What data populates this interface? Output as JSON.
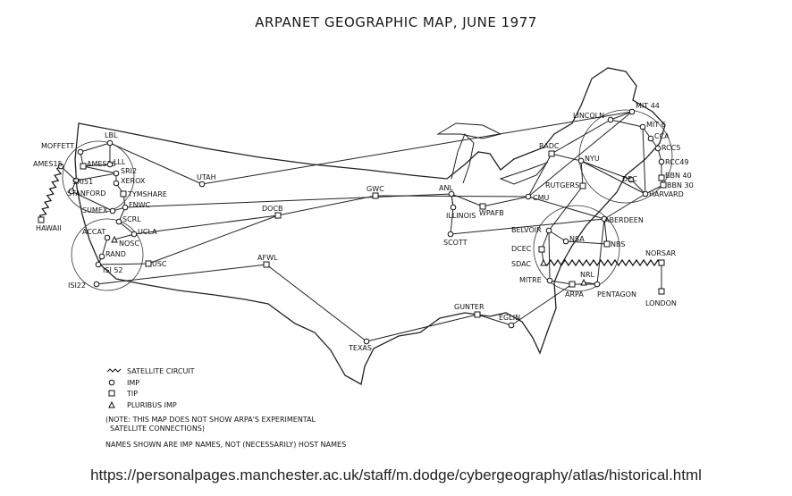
{
  "title": "ARPANET GEOGRAPHIC MAP, JUNE 1977",
  "caption": "https://personalpages.manchester.ac.uk/staff/m.dodge/cybergeography/atlas/historical.html",
  "nodes": [
    {
      "id": "moffett",
      "label": "MOFFETT",
      "type": "imp"
    },
    {
      "id": "lbl",
      "label": "LBL",
      "type": "imp"
    },
    {
      "id": "ames15",
      "label": "AMES15",
      "type": "imp"
    },
    {
      "id": "ames16",
      "label": "AMES16",
      "type": "tip"
    },
    {
      "id": "lll",
      "label": "LLL",
      "type": "imp"
    },
    {
      "id": "sri2",
      "label": "SRI2",
      "type": "imp"
    },
    {
      "id": "sri51",
      "label": "SRI51",
      "type": "imp"
    },
    {
      "id": "xerox",
      "label": "XEROX",
      "type": "imp"
    },
    {
      "id": "stanford",
      "label": "STANFORD",
      "type": "imp"
    },
    {
      "id": "tymshare",
      "label": "TYMSHARE",
      "type": "tip"
    },
    {
      "id": "sumex",
      "label": "SUMEX",
      "type": "imp"
    },
    {
      "id": "fnwc",
      "label": "FNWC",
      "type": "imp"
    },
    {
      "id": "hawaii",
      "label": "HAWAII",
      "type": "tip"
    },
    {
      "id": "accat",
      "label": "ACCAT",
      "type": "imp"
    },
    {
      "id": "scrl",
      "label": "SCRL",
      "type": "imp"
    },
    {
      "id": "ucla",
      "label": "UCLA",
      "type": "imp"
    },
    {
      "id": "nosc",
      "label": "NOSC",
      "type": "pluribus"
    },
    {
      "id": "rand",
      "label": "RAND",
      "type": "imp"
    },
    {
      "id": "isi52",
      "label": "ISI 52",
      "type": "imp"
    },
    {
      "id": "usc",
      "label": "USC",
      "type": "tip"
    },
    {
      "id": "isi22",
      "label": "ISI22",
      "type": "imp"
    },
    {
      "id": "utah",
      "label": "UTAH",
      "type": "imp"
    },
    {
      "id": "docb",
      "label": "DOCB",
      "type": "tip"
    },
    {
      "id": "afwl",
      "label": "AFWL",
      "type": "tip"
    },
    {
      "id": "gwc",
      "label": "GWC",
      "type": "tip"
    },
    {
      "id": "anl",
      "label": "ANL",
      "type": "imp"
    },
    {
      "id": "illinois",
      "label": "ILLINOIS",
      "type": "imp"
    },
    {
      "id": "wpafb",
      "label": "WPAFB",
      "type": "tip"
    },
    {
      "id": "scott",
      "label": "SCOTT",
      "type": "imp"
    },
    {
      "id": "cmu",
      "label": "CMU",
      "type": "imp"
    },
    {
      "id": "texas",
      "label": "TEXAS",
      "type": "imp"
    },
    {
      "id": "gunter",
      "label": "GUNTER",
      "type": "tip"
    },
    {
      "id": "eglin",
      "label": "EGLIN",
      "type": "imp"
    },
    {
      "id": "radc",
      "label": "RADC",
      "type": "tip"
    },
    {
      "id": "lincoln",
      "label": "LINCOLN",
      "type": "imp"
    },
    {
      "id": "mit44",
      "label": "MIT 44",
      "type": "imp"
    },
    {
      "id": "mit6",
      "label": "MIT 6",
      "type": "imp"
    },
    {
      "id": "cca",
      "label": "CCA",
      "type": "imp"
    },
    {
      "id": "rcc5",
      "label": "RCC5",
      "type": "imp"
    },
    {
      "id": "rcc49",
      "label": "RCC49",
      "type": "imp"
    },
    {
      "id": "bbn40",
      "label": "BBN 40",
      "type": "tip"
    },
    {
      "id": "bbn30",
      "label": "BBN 30",
      "type": "tip"
    },
    {
      "id": "dec",
      "label": "DEC",
      "type": "imp"
    },
    {
      "id": "harvard",
      "label": "HARVARD",
      "type": "imp"
    },
    {
      "id": "nyu",
      "label": "NYU",
      "type": "imp"
    },
    {
      "id": "rutgers",
      "label": "RUTGERS",
      "type": "tip"
    },
    {
      "id": "aberdeen",
      "label": "ABERDEEN",
      "type": "imp"
    },
    {
      "id": "belvoir",
      "label": "BELVOIR",
      "type": "imp"
    },
    {
      "id": "nsa",
      "label": "NSA",
      "type": "imp"
    },
    {
      "id": "nbs",
      "label": "NBS",
      "type": "tip"
    },
    {
      "id": "dcec",
      "label": "DCEC",
      "type": "tip"
    },
    {
      "id": "sdac",
      "label": "SDAC",
      "type": "pluribus"
    },
    {
      "id": "norsar",
      "label": "NORSAR",
      "type": "tip"
    },
    {
      "id": "mitre",
      "label": "MITRE",
      "type": "imp"
    },
    {
      "id": "nrl",
      "label": "NRL",
      "type": "pluribus"
    },
    {
      "id": "arpa",
      "label": "ARPA",
      "type": "tip"
    },
    {
      "id": "pentagon",
      "label": "PENTAGON",
      "type": "imp"
    },
    {
      "id": "london",
      "label": "LONDON",
      "type": "tip"
    }
  ],
  "links": [
    [
      "moffett",
      "lbl"
    ],
    [
      "lbl",
      "lll"
    ],
    [
      "moffett",
      "ames16"
    ],
    [
      "ames16",
      "lll"
    ],
    [
      "ames16",
      "sri2"
    ],
    [
      "sri51",
      "sri2"
    ],
    [
      "sri2",
      "xerox"
    ],
    [
      "sri51",
      "stanford"
    ],
    [
      "stanford",
      "sumex"
    ],
    [
      "sumex",
      "fnwc"
    ],
    [
      "ames15",
      "sri51"
    ],
    [
      "lbl",
      "utah"
    ],
    [
      "utah",
      "mit44"
    ],
    [
      "xerox",
      "tymshare"
    ],
    [
      "tymshare",
      "fnwc"
    ],
    [
      "fnwc",
      "scrl"
    ],
    [
      "scrl",
      "ucla"
    ],
    [
      "ucla",
      "nosc"
    ],
    [
      "accat",
      "rand"
    ],
    [
      "rand",
      "isi52"
    ],
    [
      "isi52",
      "usc"
    ],
    [
      "usc",
      "docb"
    ],
    [
      "docb",
      "gwc"
    ],
    [
      "gwc",
      "cmu"
    ],
    [
      "docb",
      "ucla"
    ],
    [
      "isi22",
      "afwl"
    ],
    [
      "afwl",
      "texas"
    ],
    [
      "texas",
      "gunter"
    ],
    [
      "gunter",
      "eglin"
    ],
    [
      "eglin",
      "arpa"
    ],
    [
      "fnwc",
      "anl"
    ],
    [
      "anl",
      "wpafb"
    ],
    [
      "anl",
      "illinois"
    ],
    [
      "illinois",
      "scott"
    ],
    [
      "wpafb",
      "cmu"
    ],
    [
      "cmu",
      "radc"
    ],
    [
      "cmu",
      "aberdeen"
    ],
    [
      "radc",
      "lincoln"
    ],
    [
      "lincoln",
      "mit44"
    ],
    [
      "lincoln",
      "mit6"
    ],
    [
      "mit6",
      "cca"
    ],
    [
      "cca",
      "rcc5"
    ],
    [
      "rcc5",
      "rcc49"
    ],
    [
      "rcc49",
      "bbn40"
    ],
    [
      "bbn40",
      "bbn30"
    ],
    [
      "bbn30",
      "harvard"
    ],
    [
      "harvard",
      "dec"
    ],
    [
      "dec",
      "nyu"
    ],
    [
      "nyu",
      "rutgers"
    ],
    [
      "rutgers",
      "belvoir"
    ],
    [
      "belvoir",
      "nsa"
    ],
    [
      "nsa",
      "nbs"
    ],
    [
      "nbs",
      "aberdeen"
    ],
    [
      "aberdeen",
      "harvard"
    ],
    [
      "mit6",
      "harvard"
    ],
    [
      "nyu",
      "harvard"
    ],
    [
      "belvoir",
      "mitre"
    ],
    [
      "mitre",
      "arpa"
    ],
    [
      "arpa",
      "pentagon"
    ],
    [
      "pentagon",
      "aberdeen"
    ],
    [
      "dcec",
      "sdac"
    ],
    [
      "norsar",
      "london"
    ],
    [
      "scott",
      "aberdeen"
    ],
    [
      "cmu",
      "mit44"
    ],
    [
      "nrl",
      "pentagon"
    ],
    [
      "belvoir",
      "dcec"
    ],
    [
      "illinois",
      "anl"
    ],
    [
      "radc",
      "nyu"
    ]
  ],
  "satellite_links": [
    [
      "ames15",
      "hawaii"
    ],
    [
      "sdac",
      "norsar"
    ]
  ],
  "legend": [
    {
      "symbol": "satellite",
      "text": "SATELLITE CIRCUIT"
    },
    {
      "symbol": "imp",
      "text": "IMP"
    },
    {
      "symbol": "tip",
      "text": "TIP"
    },
    {
      "symbol": "pluribus",
      "text": "PLURIBUS IMP"
    }
  ],
  "notes": [
    "(NOTE: THIS MAP DOES NOT SHOW ARPA'S EXPERIMENTAL",
    "SATELLITE CONNECTIONS)",
    "NAMES SHOWN ARE IMP NAMES, NOT (NECESSARILY) HOST NAMES"
  ]
}
